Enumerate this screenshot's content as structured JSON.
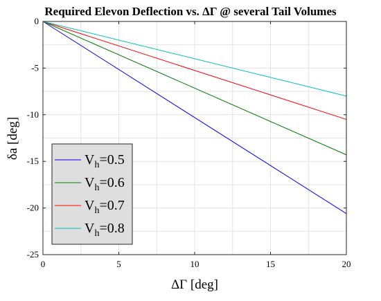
{
  "chart_data": {
    "type": "line",
    "title": "Required Elevon Deflection vs. ΔΓ @ several Tail Volumes",
    "xlabel": "ΔΓ [deg]",
    "ylabel": "δa [deg]",
    "xlim": [
      0,
      20
    ],
    "ylim": [
      -25,
      0
    ],
    "xticks": [
      0,
      5,
      10,
      15,
      20
    ],
    "yticks": [
      0,
      -5,
      -10,
      -15,
      -20,
      -25
    ],
    "xtick_labels": [
      "0",
      "5",
      "10",
      "15",
      "20"
    ],
    "ytick_labels": [
      "0",
      "-5",
      "-10",
      "-15",
      "-20",
      "-25"
    ],
    "grid": true,
    "legend_position": "lower-left",
    "x": [
      0,
      20
    ],
    "series": [
      {
        "name": "V_h=0.5",
        "label_main": "V",
        "label_sub": "h",
        "label_rest": "=0.5",
        "color": "#0000ff",
        "values": [
          0,
          -20.6
        ]
      },
      {
        "name": "V_h=0.6",
        "label_main": "V",
        "label_sub": "h",
        "label_rest": "=0.6",
        "color": "#007f00",
        "values": [
          0,
          -14.3
        ]
      },
      {
        "name": "V_h=0.7",
        "label_main": "V",
        "label_sub": "h",
        "label_rest": "=0.7",
        "color": "#ff0000",
        "values": [
          0,
          -10.5
        ]
      },
      {
        "name": "V_h=0.8",
        "label_main": "V",
        "label_sub": "h",
        "label_rest": "=0.8",
        "color": "#00bfbf",
        "values": [
          0,
          -8.0
        ]
      }
    ]
  }
}
